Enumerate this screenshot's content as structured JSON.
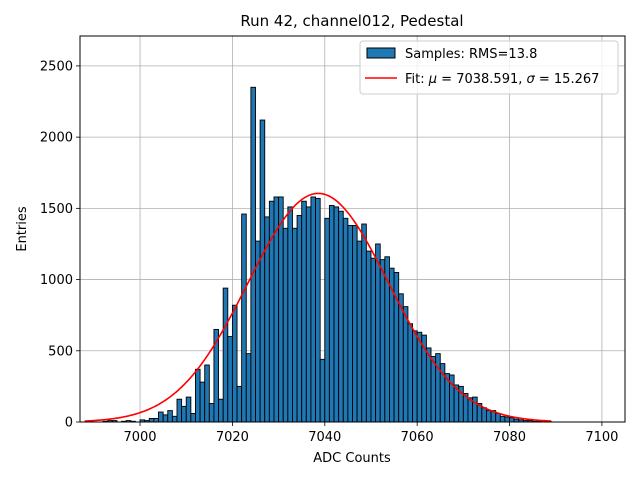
{
  "chart_data": {
    "type": "histogram",
    "title": "Run 42, channel012, Pedestal",
    "xlabel": "ADC Counts",
    "ylabel": "Entries",
    "xlim": [
      6987,
      7105
    ],
    "ylim": [
      0,
      2710
    ],
    "xticks": [
      7000,
      7020,
      7040,
      7060,
      7080,
      7100
    ],
    "yticks": [
      0,
      500,
      1000,
      1500,
      2000,
      2500
    ],
    "grid": true,
    "legend_position": "top-right",
    "bar_color": "#1f77b4",
    "bar_edge_color": "#000000",
    "fit_color": "#ff0000",
    "bin_width": 1,
    "bins": [
      [
        6992,
        5
      ],
      [
        6993,
        10
      ],
      [
        6994,
        10
      ],
      [
        6996,
        5
      ],
      [
        6997,
        10
      ],
      [
        6998,
        5
      ],
      [
        7000,
        15
      ],
      [
        7001,
        10
      ],
      [
        7002,
        25
      ],
      [
        7003,
        25
      ],
      [
        7004,
        70
      ],
      [
        7005,
        50
      ],
      [
        7006,
        80
      ],
      [
        7007,
        40
      ],
      [
        7008,
        160
      ],
      [
        7009,
        110
      ],
      [
        7010,
        175
      ],
      [
        7011,
        60
      ],
      [
        7012,
        370
      ],
      [
        7013,
        280
      ],
      [
        7014,
        400
      ],
      [
        7015,
        130
      ],
      [
        7016,
        650
      ],
      [
        7017,
        160
      ],
      [
        7018,
        940
      ],
      [
        7019,
        600
      ],
      [
        7020,
        820
      ],
      [
        7021,
        250
      ],
      [
        7022,
        1460
      ],
      [
        7023,
        480
      ],
      [
        7024,
        2350
      ],
      [
        7025,
        1270
      ],
      [
        7026,
        2120
      ],
      [
        7027,
        1440
      ],
      [
        7028,
        1550
      ],
      [
        7029,
        1580
      ],
      [
        7030,
        1580
      ],
      [
        7031,
        1360
      ],
      [
        7032,
        1510
      ],
      [
        7033,
        1360
      ],
      [
        7034,
        1450
      ],
      [
        7035,
        1550
      ],
      [
        7036,
        1510
      ],
      [
        7037,
        1580
      ],
      [
        7038,
        1570
      ],
      [
        7039,
        440
      ],
      [
        7040,
        1430
      ],
      [
        7041,
        1520
      ],
      [
        7042,
        1510
      ],
      [
        7043,
        1480
      ],
      [
        7044,
        1430
      ],
      [
        7045,
        1380
      ],
      [
        7046,
        1380
      ],
      [
        7047,
        1270
      ],
      [
        7048,
        1390
      ],
      [
        7049,
        1200
      ],
      [
        7050,
        1150
      ],
      [
        7051,
        1250
      ],
      [
        7052,
        1140
      ],
      [
        7053,
        1160
      ],
      [
        7054,
        1080
      ],
      [
        7055,
        1050
      ],
      [
        7056,
        900
      ],
      [
        7057,
        810
      ],
      [
        7058,
        690
      ],
      [
        7059,
        640
      ],
      [
        7060,
        630
      ],
      [
        7061,
        610
      ],
      [
        7062,
        520
      ],
      [
        7063,
        460
      ],
      [
        7064,
        480
      ],
      [
        7065,
        410
      ],
      [
        7066,
        340
      ],
      [
        7067,
        330
      ],
      [
        7068,
        260
      ],
      [
        7069,
        250
      ],
      [
        7070,
        200
      ],
      [
        7071,
        170
      ],
      [
        7072,
        175
      ],
      [
        7073,
        130
      ],
      [
        7074,
        100
      ],
      [
        7075,
        80
      ],
      [
        7076,
        80
      ],
      [
        7077,
        60
      ],
      [
        7078,
        40
      ],
      [
        7079,
        35
      ],
      [
        7080,
        30
      ],
      [
        7081,
        20
      ],
      [
        7082,
        15
      ],
      [
        7083,
        10
      ],
      [
        7084,
        10
      ],
      [
        7085,
        5
      ],
      [
        7086,
        5
      ],
      [
        7088,
        5
      ]
    ],
    "series": [
      {
        "name": "Samples: RMS=13.8",
        "kind": "histogram"
      },
      {
        "name": "Fit: μ = 7038.591, σ = 15.267",
        "kind": "line",
        "mu": 7038.591,
        "sigma": 15.267,
        "amplitude": 1605,
        "x_range": [
          6988,
          7089
        ]
      }
    ],
    "legend": {
      "samples_prefix": "Samples: RMS=13.8",
      "fit_prefix": "Fit: ",
      "fit_mu_symbol": "μ",
      "fit_mu_value": " = 7038.591, ",
      "fit_sigma_symbol": "σ",
      "fit_sigma_value": " = 15.267"
    }
  }
}
